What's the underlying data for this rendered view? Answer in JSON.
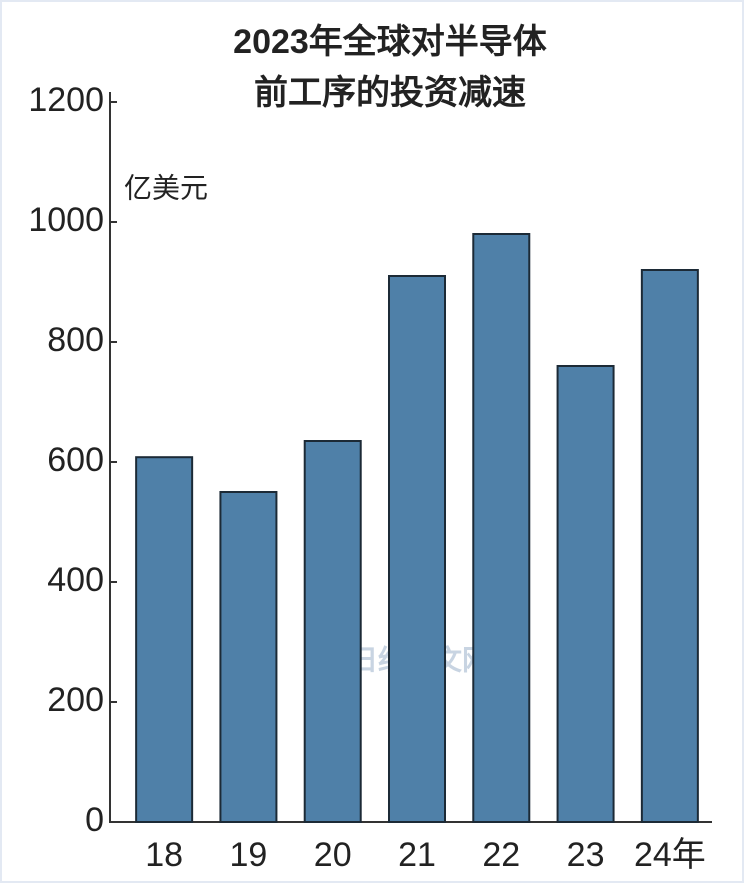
{
  "chart_data": {
    "type": "bar",
    "title": [
      "2023年全球对半导体",
      "前工序的投资减速"
    ],
    "unit_label": "亿美元",
    "watermark": "日经中文网",
    "categories": [
      "18",
      "19",
      "20",
      "21",
      "22",
      "23",
      "24年"
    ],
    "values": [
      608,
      550,
      635,
      910,
      980,
      760,
      920
    ],
    "color": "#4f80a8",
    "ylim": [
      0,
      1200
    ],
    "yticks": [
      0,
      200,
      400,
      600,
      800,
      1000,
      1200
    ],
    "grid": false
  }
}
